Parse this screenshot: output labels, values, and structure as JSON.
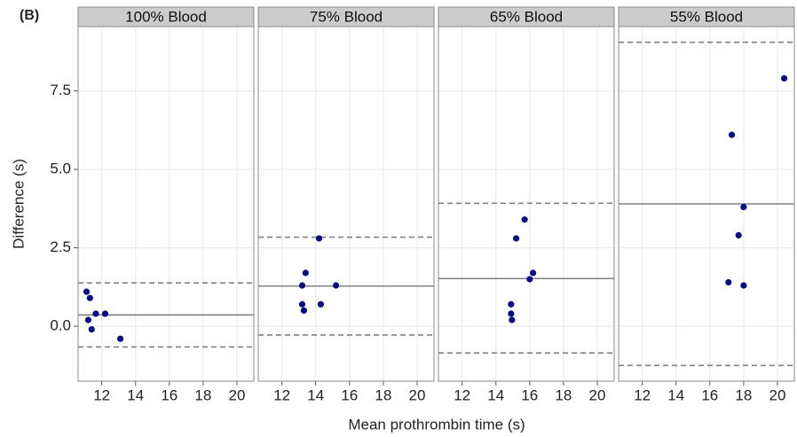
{
  "panel_label": "(B)",
  "x_label": "Mean prothrombin time (s)",
  "y_label": "Difference (s)",
  "chart_data": [
    {
      "type": "scatter",
      "title": "100% Blood",
      "x": [
        11.1,
        11.3,
        11.2,
        11.4,
        11.65,
        12.2,
        13.1
      ],
      "y": [
        1.1,
        0.9,
        0.2,
        -0.1,
        0.4,
        0.4,
        -0.4
      ],
      "mean": 0.36,
      "limits": [
        1.38,
        -0.66
      ],
      "color": "#0b0b80",
      "line_color": "#808080",
      "xlim": [
        10.6,
        21
      ],
      "xticks": [
        12,
        14,
        16,
        18,
        20
      ],
      "ylim": [
        -1.75,
        9.55
      ],
      "yticks": [
        {
          "value": 0,
          "label": "0.0"
        },
        2.5,
        {
          "value": 5,
          "label": "5.0"
        },
        7.5
      ],
      "grid": true
    },
    {
      "type": "scatter",
      "title": "75% Blood",
      "x": [
        13.2,
        13.3,
        13.2,
        13.4,
        14.2,
        14.3,
        15.2
      ],
      "y": [
        0.7,
        0.5,
        1.3,
        1.7,
        2.8,
        0.7,
        1.3
      ],
      "mean": 1.28,
      "limits": [
        2.84,
        -0.28
      ],
      "color": "#0b0b80",
      "line_color": "#808080",
      "xlim": [
        10.6,
        21
      ],
      "xticks": [
        12,
        14,
        16,
        18,
        20
      ],
      "ylim": [
        -1.75,
        9.55
      ],
      "yticks": [
        {
          "value": 0,
          "label": "0.0"
        },
        2.5,
        {
          "value": 5,
          "label": "5.0"
        },
        7.5
      ],
      "grid": true
    },
    {
      "type": "scatter",
      "title": "65% Blood",
      "x": [
        14.9,
        14.9,
        14.95,
        15.2,
        15.7,
        16.0,
        16.2
      ],
      "y": [
        0.7,
        0.4,
        0.2,
        2.8,
        3.4,
        1.5,
        1.7
      ],
      "mean": 1.52,
      "limits": [
        3.92,
        -0.85
      ],
      "color": "#0b0b80",
      "line_color": "#808080",
      "xlim": [
        10.6,
        21
      ],
      "xticks": [
        12,
        14,
        16,
        18,
        20
      ],
      "ylim": [
        -1.75,
        9.55
      ],
      "yticks": [
        {
          "value": 0,
          "label": "0.0"
        },
        2.5,
        {
          "value": 5,
          "label": "5.0"
        },
        7.5
      ],
      "grid": true
    },
    {
      "type": "scatter",
      "title": "55% Blood",
      "x": [
        17.1,
        18.0,
        17.7,
        18.0,
        17.3,
        20.4
      ],
      "y": [
        1.4,
        1.3,
        2.9,
        3.8,
        6.1,
        7.9
      ],
      "mean": 3.9,
      "limits": [
        9.05,
        -1.25
      ],
      "color": "#0b0b80",
      "line_color": "#808080",
      "xlim": [
        10.6,
        21
      ],
      "xticks": [
        12,
        14,
        16,
        18,
        20
      ],
      "ylim": [
        -1.75,
        9.55
      ],
      "yticks": [
        {
          "value": 0,
          "label": "0.0"
        },
        2.5,
        {
          "value": 5,
          "label": "5.0"
        },
        7.5
      ],
      "grid": true
    }
  ]
}
